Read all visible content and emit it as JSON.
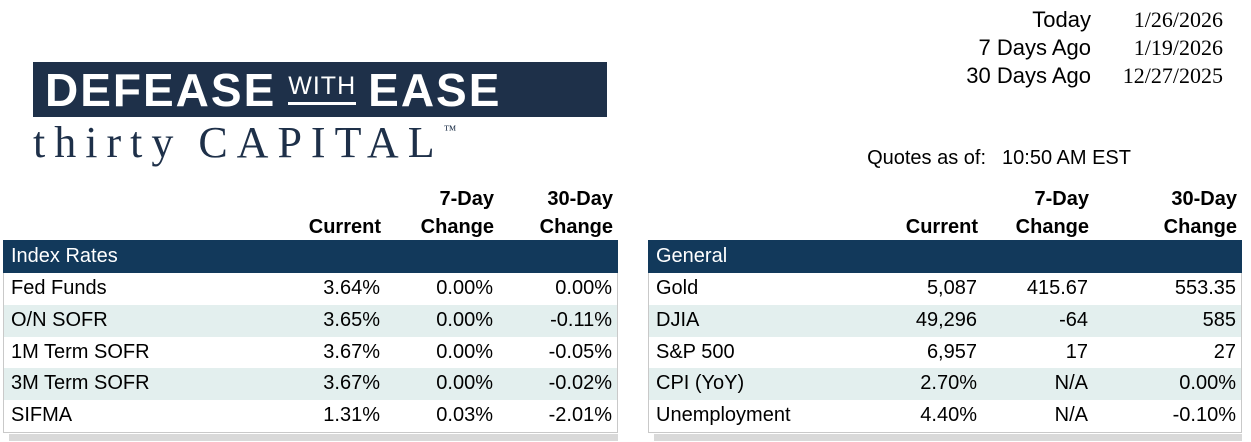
{
  "dates": {
    "rows": [
      {
        "label": "Today",
        "value": "1/26/2026"
      },
      {
        "label": "7 Days Ago",
        "value": "1/19/2026"
      },
      {
        "label": "30 Days Ago",
        "value": "12/27/2025"
      }
    ]
  },
  "logo": {
    "word1": "DEFEASE",
    "word2": "WITH",
    "word3": "EASE",
    "tagline_word1": "thirty",
    "tagline_word2": "CAPITAL",
    "trademark": "™"
  },
  "quotes": {
    "label": "Quotes as of:",
    "value": "10:50 AM EST"
  },
  "columns": {
    "current": "Current",
    "d7_top": "7-Day",
    "d30_top": "30-Day",
    "change": "Change"
  },
  "left_table": {
    "section": "Index Rates",
    "rows": [
      {
        "label": "Fed Funds",
        "current": "3.64%",
        "d7": "0.00%",
        "d30": "0.00%"
      },
      {
        "label": "O/N SOFR",
        "current": "3.65%",
        "d7": "0.00%",
        "d30": "-0.11%"
      },
      {
        "label": "1M Term SOFR",
        "current": "3.67%",
        "d7": "0.00%",
        "d30": "-0.05%"
      },
      {
        "label": "3M Term SOFR",
        "current": "3.67%",
        "d7": "0.00%",
        "d30": "-0.02%"
      },
      {
        "label": "SIFMA",
        "current": "1.31%",
        "d7": "0.03%",
        "d30": "-2.01%"
      }
    ]
  },
  "right_table": {
    "section": "General",
    "rows": [
      {
        "label": "Gold",
        "current": "5,087",
        "d7": "415.67",
        "d30": "553.35"
      },
      {
        "label": "DJIA",
        "current": "49,296",
        "d7": "-64",
        "d30": "585"
      },
      {
        "label": "S&P 500",
        "current": "6,957",
        "d7": "17",
        "d30": "27"
      },
      {
        "label": "CPI (YoY)",
        "current": "2.70%",
        "d7": "N/A",
        "d30": "0.00%"
      },
      {
        "label": "Unemployment",
        "current": "4.40%",
        "d7": "N/A",
        "d30": "-0.10%"
      }
    ]
  },
  "colors": {
    "table_band_navy": "#12395b",
    "logo_navy": "#1e3049",
    "row_alternate": "#e3efee",
    "shadow_grey": "#d9d9d9",
    "border_grey": "#c9c9c9"
  }
}
